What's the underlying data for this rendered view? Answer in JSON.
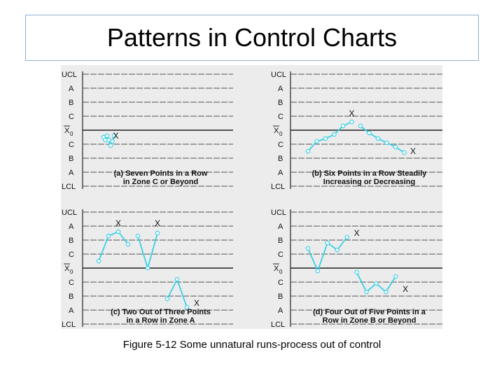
{
  "title": "Patterns in Control Charts",
  "caption": "Figure 5-12 Some unnatural runs-process out of control",
  "colors": {
    "line": "#3ad0e6",
    "grid": "#555555",
    "center": "#222222",
    "background": "#ececec",
    "title_border": "#8fb3d0"
  },
  "chart_data": [
    {
      "type": "line",
      "subtitle_lines": [
        "(a) Seven Points in a Row",
        "in Zone C or Beyond"
      ],
      "y_labels": [
        "UCL",
        "A",
        "B",
        "C",
        "X0",
        "C",
        "B",
        "A",
        "LCL"
      ],
      "series": [
        {
          "segments": [
            {
              "x": [
                1,
                2,
                3,
                4,
                5,
                6,
                7
              ],
              "y": [
                -0.5,
                -0.7,
                -0.4,
                -0.7,
                -1.1,
                -0.8,
                -0.4
              ]
            }
          ]
        }
      ],
      "markers": [
        {
          "x": 8,
          "y": -0.4,
          "label": "X"
        }
      ]
    },
    {
      "type": "line",
      "subtitle_lines": [
        "(b) Six Points in a Row Steadily",
        "Increasing or Decreasing"
      ],
      "y_labels": [
        "UCL",
        "A",
        "B",
        "C",
        "X0",
        "C",
        "B",
        "A",
        "LCL"
      ],
      "series": [
        {
          "segments": [
            {
              "x": [
                1,
                2,
                3,
                4,
                5,
                6
              ],
              "y": [
                -1.5,
                -0.8,
                -0.6,
                -0.3,
                0.3,
                0.6
              ]
            },
            {
              "x": [
                7,
                8,
                9,
                10,
                11,
                12
              ],
              "y": [
                0.3,
                -0.2,
                -0.6,
                -0.9,
                -1.2,
                -1.6
              ]
            }
          ]
        }
      ],
      "markers": [
        {
          "x": 6,
          "y": 1.2,
          "label": "X"
        },
        {
          "x": 13,
          "y": -1.5,
          "label": "X"
        }
      ]
    },
    {
      "type": "line",
      "subtitle_lines": [
        "(c) Two Out of Three Points",
        "in a Row in Zone A"
      ],
      "y_labels": [
        "UCL",
        "A",
        "B",
        "C",
        "X0",
        "C",
        "B",
        "A",
        "LCL"
      ],
      "series": [
        {
          "segments": [
            {
              "x": [
                1,
                2,
                3,
                4
              ],
              "y": [
                0.5,
                2.3,
                2.6,
                1.7
              ]
            },
            {
              "x": [
                5,
                6,
                7
              ],
              "y": [
                2.3,
                0,
                2.5
              ]
            },
            {
              "x": [
                8,
                9,
                10
              ],
              "y": [
                -2.2,
                -0.8,
                -2.8
              ]
            }
          ]
        }
      ],
      "markers": [
        {
          "x": 3,
          "y": 3.2,
          "label": "X"
        },
        {
          "x": 7,
          "y": 3.2,
          "label": "X"
        },
        {
          "x": 11,
          "y": -2.5,
          "label": "X"
        }
      ]
    },
    {
      "type": "line",
      "subtitle_lines": [
        "(d) Four Out of Five Points in a",
        "Row in Zone B or Beyond"
      ],
      "y_labels": [
        "UCL",
        "A",
        "B",
        "C",
        "X0",
        "C",
        "B",
        "A",
        "LCL"
      ],
      "series": [
        {
          "segments": [
            {
              "x": [
                1,
                2,
                3,
                4,
                5
              ],
              "y": [
                1.4,
                -0.2,
                1.8,
                1.3,
                2.2
              ]
            },
            {
              "x": [
                6,
                7,
                8,
                9,
                10
              ],
              "y": [
                -0.3,
                -1.7,
                -1.1,
                -1.7,
                -0.6
              ]
            }
          ]
        }
      ],
      "markers": [
        {
          "x": 6,
          "y": 2.5,
          "label": "X"
        },
        {
          "x": 11,
          "y": -1.5,
          "label": "X"
        }
      ]
    }
  ]
}
